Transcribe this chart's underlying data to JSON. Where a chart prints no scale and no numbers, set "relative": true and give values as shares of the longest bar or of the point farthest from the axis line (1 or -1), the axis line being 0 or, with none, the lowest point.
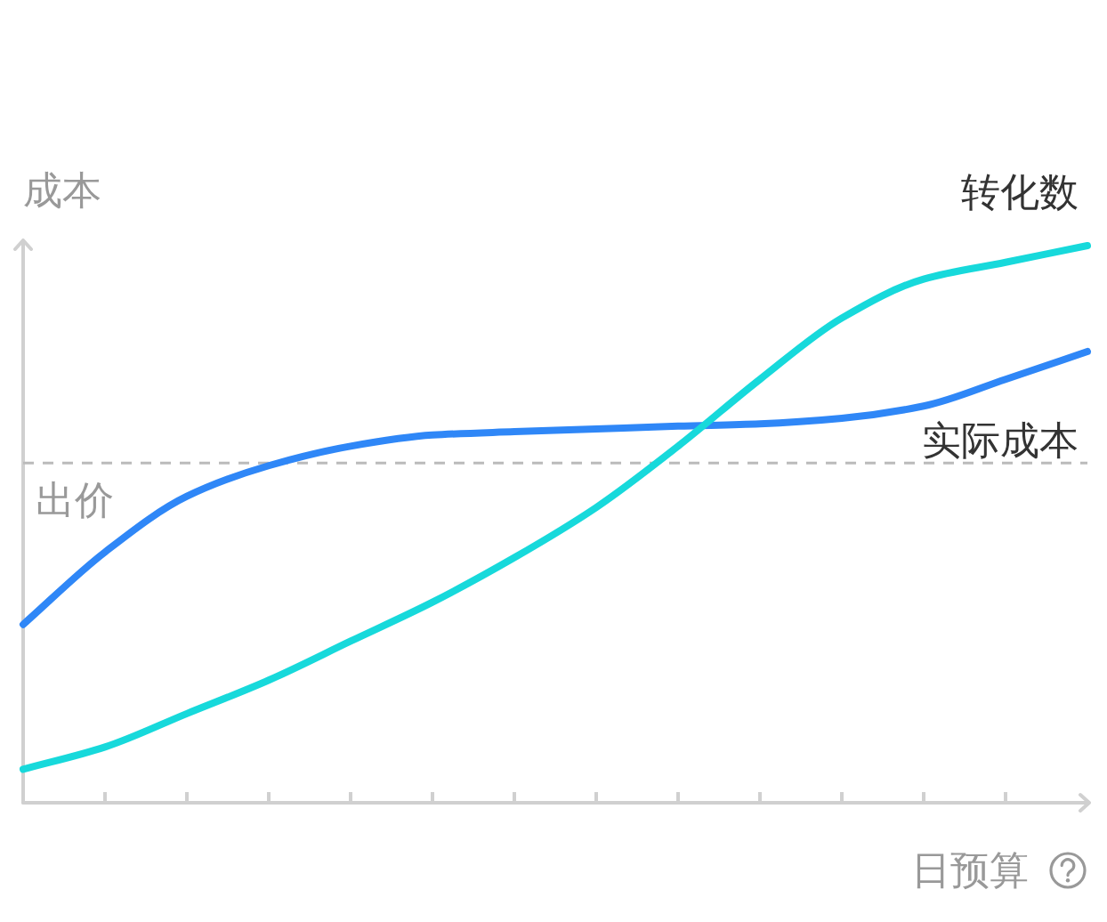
{
  "chart_data": {
    "type": "line",
    "relative": true,
    "xlabel": "日预算",
    "ylabel": "成本",
    "categories": [
      null,
      null,
      null,
      null,
      null,
      null,
      null,
      null,
      null,
      null,
      null,
      null,
      null,
      null
    ],
    "series": [
      {
        "name": "实际成本",
        "color": "#2f87f7",
        "values": [
          0.32,
          0.45,
          0.55,
          0.605,
          0.64,
          0.66,
          0.666,
          0.671,
          0.676,
          0.68,
          0.69,
          0.712,
          0.76,
          0.81
        ]
      },
      {
        "name": "转化数",
        "color": "#17d9db",
        "values": [
          0.06,
          0.1,
          0.16,
          0.22,
          0.29,
          0.36,
          0.44,
          0.53,
          0.64,
          0.76,
          0.87,
          0.94,
          0.97,
          1
        ]
      }
    ],
    "ref_lines": [
      {
        "axis": "y",
        "value": 0.61,
        "label": "出价",
        "color": "#bbbbbb",
        "line_style": "dashed"
      }
    ]
  }
}
